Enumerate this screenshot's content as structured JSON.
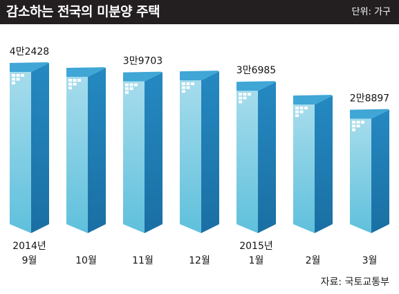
{
  "header": {
    "title": "감소하는 전국의 미분양 주택",
    "unit": "단위: 가구"
  },
  "source": "자료: 국토교통부",
  "colors": {
    "header_bg": "#231f20",
    "bar_front": "#5fc0dc",
    "bar_side": "#1a6fa3",
    "bar_top": "#3fa6d6"
  },
  "chart_data": {
    "type": "bar",
    "title": "감소하는 전국의 미분양 주택",
    "ylabel": "단위: 가구",
    "grid": false,
    "categories": [
      [
        "2014년",
        "9월"
      ],
      [
        "10월"
      ],
      [
        "11월"
      ],
      [
        "12월"
      ],
      [
        "2015년",
        "1월"
      ],
      [
        "2월"
      ],
      [
        "3월"
      ]
    ],
    "values": [
      42428,
      41000,
      39703,
      40000,
      36985,
      33000,
      28897
    ],
    "data_labels": [
      "4만2428",
      "",
      "3만9703",
      "",
      "3만6985",
      "",
      "2만8897"
    ]
  }
}
